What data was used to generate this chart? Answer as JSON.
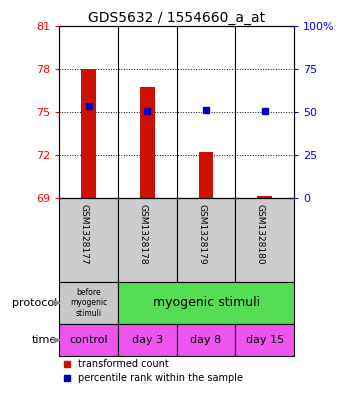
{
  "title": "GDS5632 / 1554660_a_at",
  "samples": [
    "GSM1328177",
    "GSM1328178",
    "GSM1328179",
    "GSM1328180"
  ],
  "bar_values": [
    78.0,
    76.7,
    72.2,
    69.15
  ],
  "bar_base": 69.0,
  "dot_values": [
    75.4,
    75.05,
    75.1,
    75.05
  ],
  "ylim_left": [
    69,
    81
  ],
  "ylim_right": [
    0,
    100
  ],
  "yticks_left": [
    69,
    72,
    75,
    78,
    81
  ],
  "yticks_right": [
    0,
    25,
    50,
    75,
    100
  ],
  "ytick_labels_left": [
    "69",
    "72",
    "75",
    "78",
    "81"
  ],
  "ytick_labels_right": [
    "0",
    "25",
    "50",
    "75",
    "100%"
  ],
  "bar_color": "#cc1100",
  "dot_color": "#0000bb",
  "protocol_label0": "before\nmyogenic\nstimuli",
  "protocol_label1": "myogenic stimuli",
  "protocol_color0": "#c8c8c8",
  "protocol_color1": "#55dd55",
  "time_labels": [
    "control",
    "day 3",
    "day 8",
    "day 15"
  ],
  "time_color": "#ee55ee",
  "sample_bg_color": "#cccccc",
  "title_fontsize": 10,
  "axis_fontsize": 8,
  "bar_width": 0.25
}
